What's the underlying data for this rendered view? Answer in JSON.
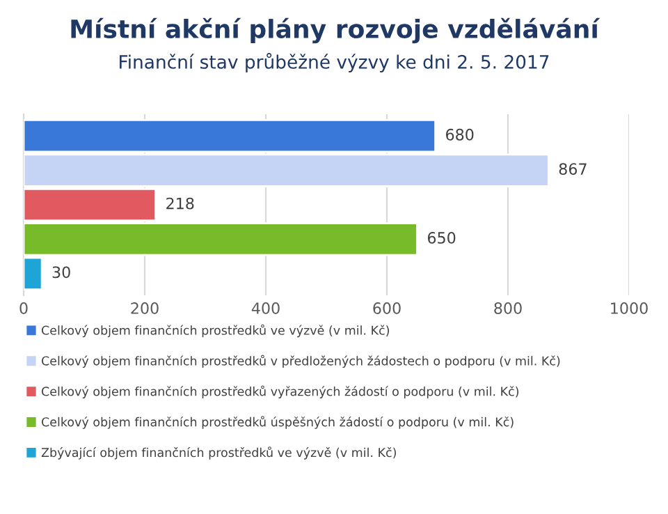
{
  "chart_data": {
    "type": "bar",
    "orientation": "horizontal",
    "title": "Místní akční plány rozvoje vzdělávání",
    "subtitle": "Finanční stav průběžné výzvy ke dni 2. 5. 2017",
    "categories": [
      null
    ],
    "series": [
      {
        "name": "Celkový objem finančních prostředků ve výzvě (v mil. Kč)",
        "color": "#3a78d8",
        "values": [
          680
        ]
      },
      {
        "name": "Celkový objem finančních prostředků v předložených žádostech o podporu (v mil. Kč)",
        "color": "#c5d3f5",
        "values": [
          867
        ]
      },
      {
        "name": "Celkový objem finančních prostředků vyřazených žádostí o podporu (v mil. Kč)",
        "color": "#e05a5f",
        "values": [
          218
        ]
      },
      {
        "name": "Celkový objem finančních prostředků úspěšných žádostí o podporu (v mil. Kč)",
        "color": "#77bb2a",
        "values": [
          650
        ]
      },
      {
        "name": "Zbývající objem finančních prostředků ve výzvě (v mil. Kč)",
        "color": "#1ea5d6",
        "values": [
          30
        ]
      }
    ],
    "xlim": [
      0,
      1000
    ],
    "xticks": [
      0,
      200,
      400,
      600,
      800,
      1000
    ],
    "grid": "x",
    "legend": "bottom",
    "data_labels": true
  }
}
